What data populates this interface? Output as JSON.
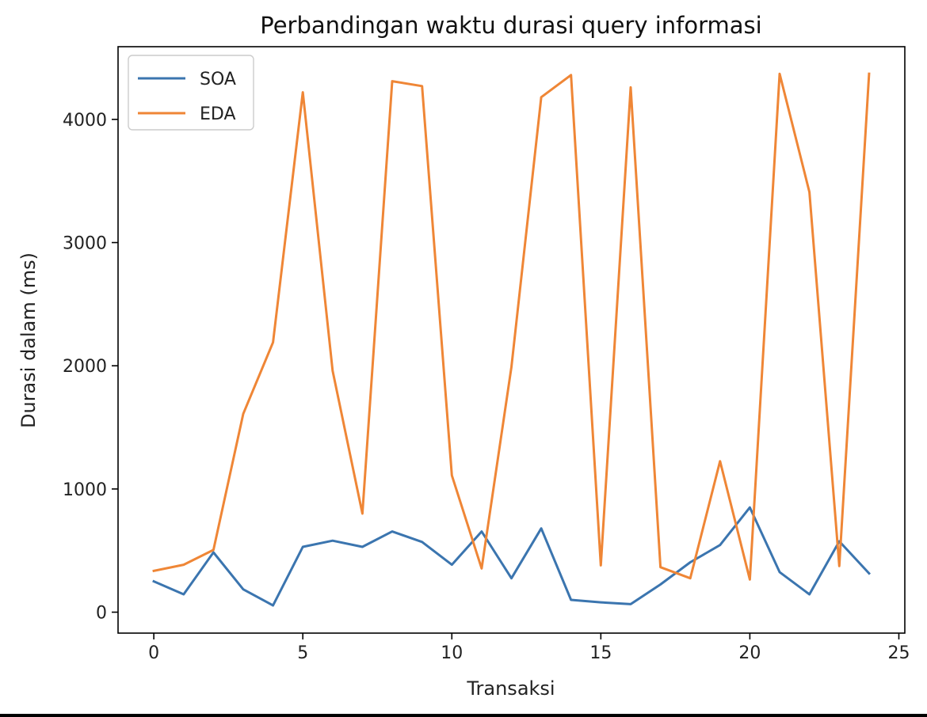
{
  "chart_data": {
    "type": "line",
    "title": "Perbandingan waktu durasi query informasi",
    "xlabel": "Transaksi",
    "ylabel": "Durasi dalam (ms)",
    "xlim": [
      -1.2,
      25.2
    ],
    "ylim": [
      -170,
      4590
    ],
    "xticks": [
      0,
      5,
      10,
      15,
      20,
      25
    ],
    "yticks": [
      0,
      1000,
      2000,
      3000,
      4000
    ],
    "grid": false,
    "legend_position": "top-left",
    "x": [
      0,
      1,
      2,
      3,
      4,
      5,
      6,
      7,
      8,
      9,
      10,
      11,
      12,
      13,
      14,
      15,
      16,
      17,
      18,
      19,
      20,
      21,
      22,
      23,
      24
    ],
    "series": [
      {
        "name": "SOA",
        "color": "#3b75af",
        "values": [
          250,
          145,
          485,
          185,
          55,
          530,
          580,
          530,
          655,
          570,
          385,
          655,
          275,
          680,
          100,
          80,
          65,
          225,
          405,
          545,
          850,
          325,
          145,
          575,
          315
        ]
      },
      {
        "name": "EDA",
        "color": "#ef8636",
        "values": [
          335,
          385,
          505,
          1610,
          2190,
          4220,
          1960,
          800,
          4310,
          4270,
          1110,
          355,
          1990,
          4180,
          4360,
          380,
          4260,
          365,
          275,
          1225,
          265,
          4370,
          3410,
          375,
          4370
        ]
      }
    ]
  }
}
